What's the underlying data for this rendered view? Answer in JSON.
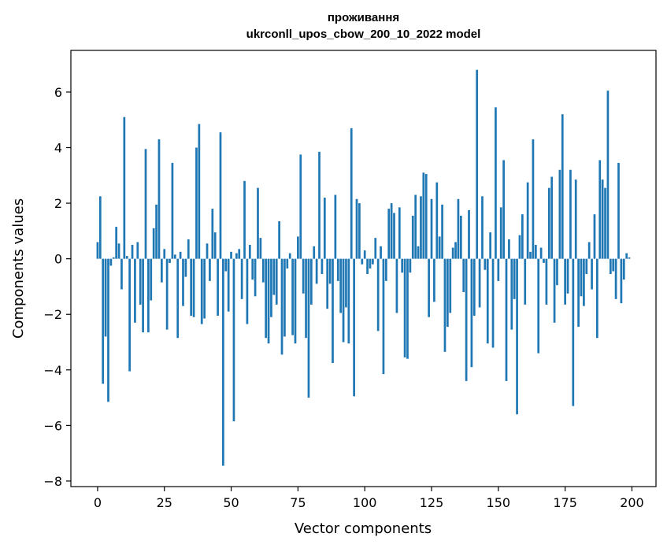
{
  "chart_data": {
    "type": "bar",
    "title_line1": "проживання",
    "title_line2": "ukrconll_upos_cbow_200_10_2022 model",
    "xlabel": "Vector components",
    "ylabel": "Components values",
    "xlim": [
      -10,
      209
    ],
    "ylim": [
      -8.2,
      7.5
    ],
    "xticks": [
      0,
      25,
      50,
      75,
      100,
      125,
      150,
      175,
      200
    ],
    "yticks": [
      -8,
      -6,
      -4,
      -2,
      0,
      2,
      4,
      6
    ],
    "bar_color": "#1f77b4",
    "grid": false,
    "values": [
      0.6,
      2.25,
      -4.5,
      -2.8,
      -5.15,
      -0.25,
      0.05,
      1.15,
      0.55,
      -1.1,
      5.1,
      0.1,
      -4.05,
      0.5,
      -2.3,
      0.6,
      -1.65,
      -2.65,
      3.95,
      -2.65,
      -1.5,
      1.1,
      1.95,
      4.3,
      -0.85,
      0.35,
      -2.55,
      -0.15,
      3.45,
      0.15,
      -2.85,
      0.25,
      -1.7,
      -0.65,
      0.7,
      -2.05,
      -2.1,
      4.0,
      4.85,
      -2.35,
      -2.15,
      0.55,
      -0.8,
      1.8,
      0.95,
      -2.05,
      4.55,
      -7.45,
      -0.45,
      -1.9,
      0.25,
      -5.85,
      0.2,
      0.35,
      -1.45,
      2.8,
      -2.35,
      0.5,
      -0.75,
      -1.35,
      2.55,
      0.75,
      -0.85,
      -2.85,
      -3.05,
      -2.1,
      -1.3,
      -1.65,
      1.35,
      -3.45,
      -2.8,
      -0.35,
      0.2,
      -2.75,
      -3.05,
      0.8,
      3.75,
      -1.25,
      -2.85,
      -5.0,
      -1.65,
      0.45,
      -0.9,
      3.85,
      -0.55,
      2.2,
      -1.8,
      -0.9,
      -3.75,
      2.3,
      -0.8,
      -1.95,
      -3.0,
      -1.75,
      -3.05,
      4.7,
      -4.95,
      2.15,
      2.0,
      -0.2,
      0.3,
      -0.55,
      -0.35,
      -0.2,
      0.75,
      -2.6,
      0.45,
      -4.15,
      -0.8,
      1.8,
      2.0,
      1.65,
      -1.95,
      1.85,
      -0.5,
      -3.55,
      -3.6,
      -0.5,
      1.55,
      2.3,
      0.45,
      2.25,
      3.1,
      3.05,
      -2.1,
      2.15,
      -1.55,
      2.75,
      0.8,
      1.95,
      -3.35,
      -2.45,
      -1.95,
      0.4,
      0.6,
      2.15,
      1.55,
      -1.2,
      -4.4,
      1.75,
      -3.9,
      -2.05,
      6.8,
      -1.75,
      2.25,
      -0.4,
      -3.05,
      0.95,
      -3.2,
      5.45,
      -0.8,
      1.85,
      3.55,
      -4.4,
      0.7,
      -2.55,
      -1.45,
      -5.6,
      0.85,
      1.6,
      -1.65,
      2.75,
      0.25,
      4.3,
      0.5,
      -3.4,
      0.4,
      -0.15,
      -1.65,
      2.55,
      2.95,
      -2.3,
      -0.95,
      3.2,
      5.2,
      -1.65,
      -1.25,
      3.2,
      -5.3,
      2.85,
      -2.45,
      -1.35,
      -1.7,
      -0.55,
      0.6,
      -1.1,
      1.6,
      -2.85,
      3.55,
      2.85,
      2.55,
      6.05,
      -0.55,
      -0.45,
      -1.45,
      3.45,
      -1.6,
      -0.75,
      0.2,
      0.05
    ]
  }
}
